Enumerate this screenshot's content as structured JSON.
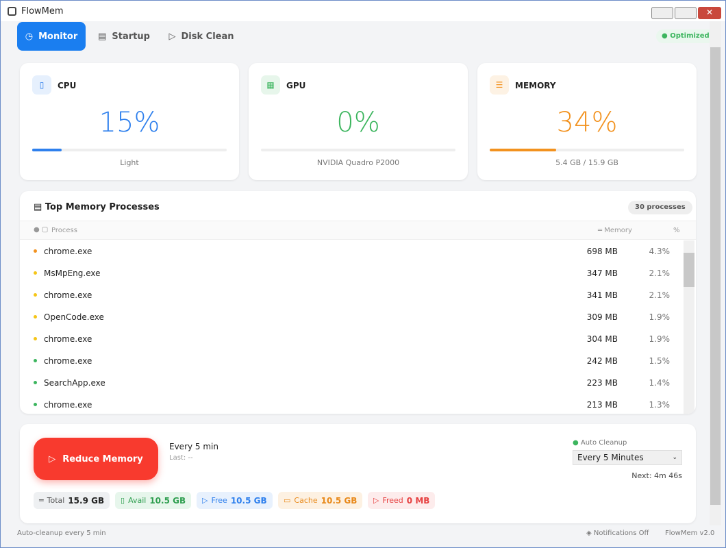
{
  "window": {
    "title": "FlowMem"
  },
  "tabs": [
    "Monitor",
    "Startup",
    "Disk Clean"
  ],
  "status": "Optimized",
  "cards": [
    {
      "title": "CPU",
      "value": 15,
      "value_label": "15%",
      "subtitle": "Light",
      "color": "#2f80ed"
    },
    {
      "title": "GPU",
      "value": 0,
      "value_label": "0%",
      "subtitle": "NVIDIA Quadro P2000",
      "color": "#3cb55e"
    },
    {
      "title": "MEMORY",
      "value": 34,
      "value_label": "34%",
      "subtitle": "5.4 GB / 15.9 GB",
      "color": "#f2921f"
    }
  ],
  "processes": {
    "title": "Top Memory Processes",
    "count": "30 processes",
    "columns": [
      "Process",
      "Memory",
      "%"
    ],
    "rows": [
      {
        "name": "chrome.exe",
        "memory": "698 MB",
        "percent": "4.3%",
        "dot": "#f2921f"
      },
      {
        "name": "MsMpEng.exe",
        "memory": "347 MB",
        "percent": "2.1%",
        "dot": "#f5c518"
      },
      {
        "name": "chrome.exe",
        "memory": "341 MB",
        "percent": "2.1%",
        "dot": "#f5c518"
      },
      {
        "name": "OpenCode.exe",
        "memory": "309 MB",
        "percent": "1.9%",
        "dot": "#f5c518"
      },
      {
        "name": "chrome.exe",
        "memory": "304 MB",
        "percent": "1.9%",
        "dot": "#f5c518"
      },
      {
        "name": "chrome.exe",
        "memory": "242 MB",
        "percent": "1.5%",
        "dot": "#3cb55e"
      },
      {
        "name": "SearchApp.exe",
        "memory": "223 MB",
        "percent": "1.4%",
        "dot": "#3cb55e"
      },
      {
        "name": "chrome.exe",
        "memory": "213 MB",
        "percent": "1.3%",
        "dot": "#3cb55e"
      }
    ]
  },
  "cleanup": {
    "button": "Reduce Memory",
    "interval": "Every 5 min",
    "last": "Last: --",
    "auto_label": "Auto Cleanup",
    "select": "Every 5 Minutes",
    "next": "Next: 4m 46s"
  },
  "stats": [
    {
      "label": "Total",
      "value": "15.9 GB",
      "color": "#555",
      "bg": "#eef0f2"
    },
    {
      "label": "Avail",
      "value": "10.5 GB",
      "color": "#2e9e4f",
      "bg": "#e7f6ec"
    },
    {
      "label": "Free",
      "value": "10.5 GB",
      "color": "#2f80ed",
      "bg": "#e8f1fd"
    },
    {
      "label": "Cache",
      "value": "10.5 GB",
      "color": "#e8891a",
      "bg": "#fdf1e2"
    },
    {
      "label": "Freed",
      "value": "0 MB",
      "color": "#e64040",
      "bg": "#fdecec"
    }
  ],
  "footer": {
    "left": "Auto-cleanup every 5 min",
    "notifications": "Notifications Off",
    "version": "FlowMem v2.0"
  }
}
